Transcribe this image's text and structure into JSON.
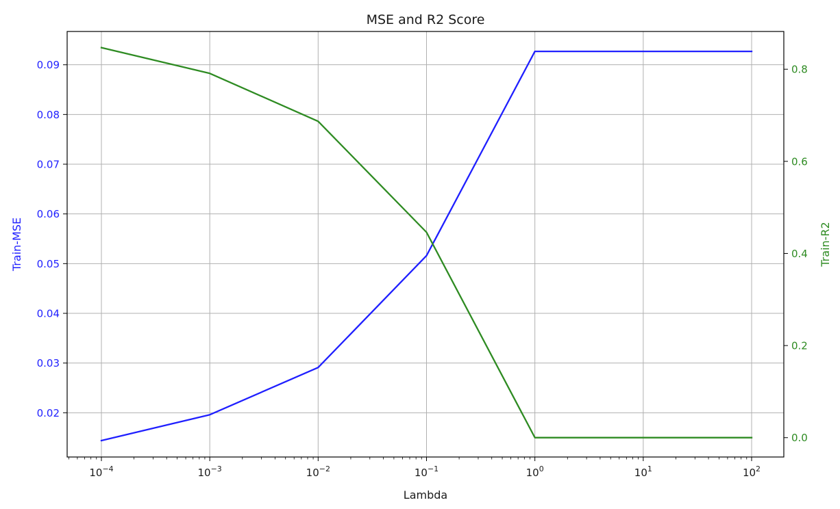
{
  "chart_data": {
    "type": "line",
    "title": "MSE and R2 Score",
    "xlabel": "Lambda",
    "x_scale": "log",
    "x": [
      0.0001,
      0.001,
      0.01,
      0.1,
      1,
      10,
      100
    ],
    "x_ticks": [
      {
        "value": 0.0001,
        "base": "10",
        "exp": "−4"
      },
      {
        "value": 0.001,
        "base": "10",
        "exp": "−3"
      },
      {
        "value": 0.01,
        "base": "10",
        "exp": "−2"
      },
      {
        "value": 0.1,
        "base": "10",
        "exp": "−1"
      },
      {
        "value": 1,
        "base": "10",
        "exp": "0"
      },
      {
        "value": 10,
        "base": "10",
        "exp": "1"
      },
      {
        "value": 100,
        "base": "10",
        "exp": "2"
      }
    ],
    "grid": true,
    "left_axis": {
      "label": "Train-MSE",
      "color": "#1f1fff",
      "ylim": [
        0.0111,
        0.0967
      ],
      "ticks": [
        "0.02",
        "0.03",
        "0.04",
        "0.05",
        "0.06",
        "0.07",
        "0.08",
        "0.09"
      ]
    },
    "right_axis": {
      "label": "Train-R2",
      "color": "#2e8b22",
      "ylim": [
        -0.042,
        0.882
      ],
      "ticks": [
        "0.0",
        "0.2",
        "0.4",
        "0.6",
        "0.8"
      ]
    },
    "series": [
      {
        "axis": "left",
        "color": "#1f1fff",
        "values": [
          0.0144,
          0.0196,
          0.0291,
          0.0516,
          0.0927,
          0.0927,
          0.0927
        ]
      },
      {
        "axis": "right",
        "color": "#2e8b22",
        "values": [
          0.847,
          0.791,
          0.687,
          0.446,
          0.0,
          0.0,
          0.0
        ]
      }
    ]
  }
}
